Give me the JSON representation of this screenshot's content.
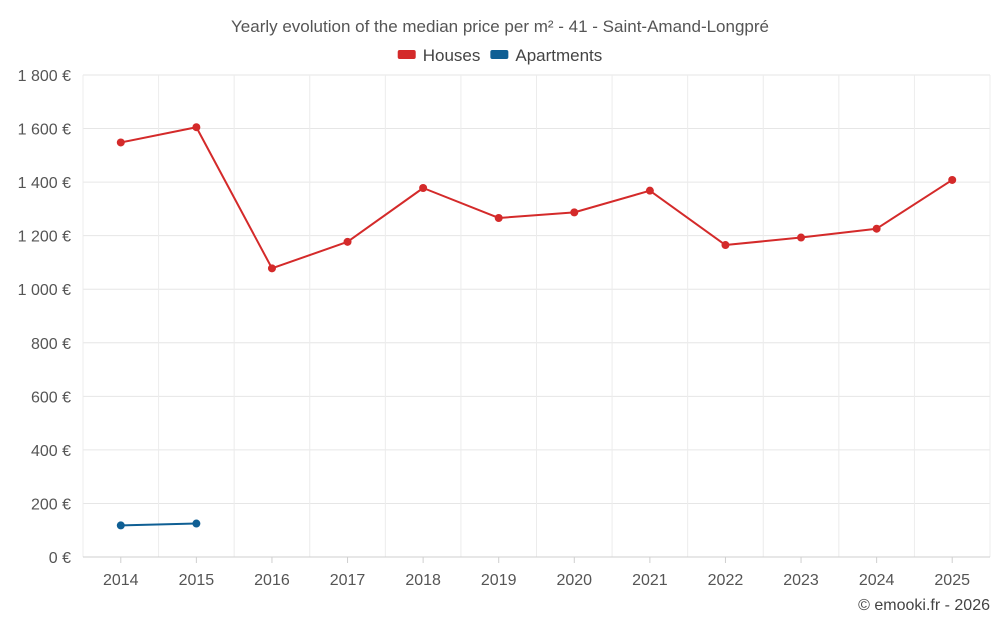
{
  "chart_data": {
    "type": "line",
    "title": "Yearly evolution of the median price per m² - 41 - Saint-Amand-Longpré",
    "xlabel": "",
    "ylabel": "",
    "categories": [
      "2014",
      "2015",
      "2016",
      "2017",
      "2018",
      "2019",
      "2020",
      "2021",
      "2022",
      "2023",
      "2024",
      "2025"
    ],
    "ylim": [
      0,
      1800
    ],
    "yticks": [
      0,
      200,
      400,
      600,
      800,
      1000,
      1200,
      1400,
      1600,
      1800
    ],
    "ytick_labels": [
      "0 €",
      "200 €",
      "400 €",
      "600 €",
      "800 €",
      "1 000 €",
      "1 200 €",
      "1 400 €",
      "1 600 €",
      "1 800 €"
    ],
    "grid": true,
    "legend_position": "top-center",
    "series": [
      {
        "name": "Houses",
        "color": "#d42a2a",
        "values": [
          1548,
          1605,
          1078,
          1177,
          1378,
          1266,
          1287,
          1368,
          1165,
          1193,
          1226,
          1408
        ]
      },
      {
        "name": "Apartments",
        "color": "#0f5f94",
        "values": [
          118,
          125,
          null,
          null,
          null,
          null,
          null,
          null,
          null,
          null,
          null,
          null
        ]
      }
    ]
  },
  "footer": {
    "credit": "© emooki.fr - 2026"
  }
}
